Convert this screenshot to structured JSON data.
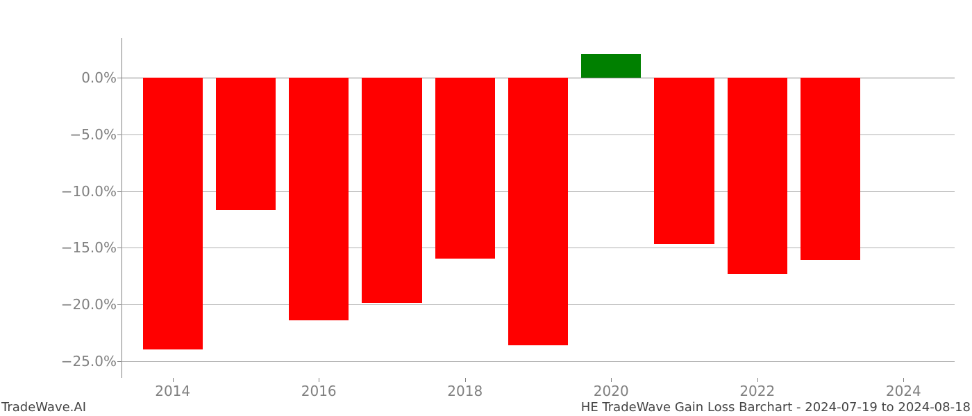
{
  "chart": {
    "type": "bar",
    "years": [
      2014,
      2015,
      2016,
      2017,
      2018,
      2019,
      2020,
      2021,
      2022,
      2023
    ],
    "values": [
      -24.0,
      -11.7,
      -21.4,
      -19.9,
      -16.0,
      -23.6,
      2.1,
      -14.7,
      -17.3,
      -16.1
    ],
    "bar_colors": [
      "#ff0000",
      "#ff0000",
      "#ff0000",
      "#ff0000",
      "#ff0000",
      "#ff0000",
      "#008000",
      "#ff0000",
      "#ff0000",
      "#ff0000"
    ],
    "ylim": [
      -26.5,
      3.5
    ],
    "yticks": [
      0.0,
      -5.0,
      -10.0,
      -15.0,
      -20.0,
      -25.0
    ],
    "ytick_labels": [
      "0.0%",
      "−5.0%",
      "−10.0%",
      "−15.0%",
      "−20.0%",
      "−25.0%"
    ],
    "xticks": [
      2014,
      2016,
      2018,
      2020,
      2022,
      2024
    ],
    "xtick_labels": [
      "2014",
      "2016",
      "2018",
      "2020",
      "2022",
      "2024"
    ],
    "xlim": [
      2013.3,
      2024.7
    ],
    "bar_width": 0.82,
    "grid_color": "#b0b0b0",
    "background_color": "#ffffff",
    "tick_fontsize": 20,
    "tick_color": "#808080"
  },
  "footer": {
    "left": "TradeWave.AI",
    "right": "HE TradeWave Gain Loss Barchart - 2024-07-19 to 2024-08-18",
    "fontsize": 18,
    "color": "#444444"
  }
}
